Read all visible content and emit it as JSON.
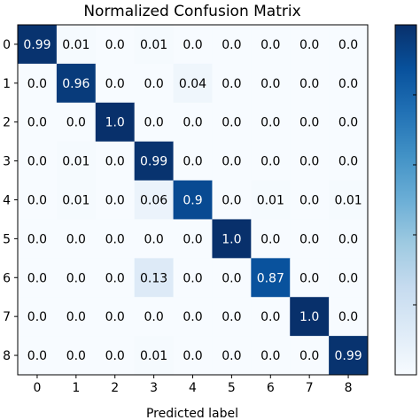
{
  "chart_data": {
    "type": "heatmap",
    "title": "Normalized Confusion Matrix",
    "xlabel": "Predicted label",
    "ylabel": "",
    "x_ticks": [
      "0",
      "1",
      "2",
      "3",
      "4",
      "5",
      "6",
      "7",
      "8"
    ],
    "y_ticks": [
      "0",
      "1",
      "2",
      "3",
      "4",
      "5",
      "6",
      "7",
      "8"
    ],
    "values": [
      [
        0.99,
        0.01,
        0.0,
        0.01,
        0.0,
        0.0,
        0.0,
        0.0,
        0.0
      ],
      [
        0.0,
        0.96,
        0.0,
        0.0,
        0.04,
        0.0,
        0.0,
        0.0,
        0.0
      ],
      [
        0.0,
        0.0,
        1.0,
        0.0,
        0.0,
        0.0,
        0.0,
        0.0,
        0.0
      ],
      [
        0.0,
        0.01,
        0.0,
        0.99,
        0.0,
        0.0,
        0.0,
        0.0,
        0.0
      ],
      [
        0.0,
        0.01,
        0.0,
        0.06,
        0.9,
        0.0,
        0.01,
        0.0,
        0.01
      ],
      [
        0.0,
        0.0,
        0.0,
        0.0,
        0.0,
        1.0,
        0.0,
        0.0,
        0.0
      ],
      [
        0.0,
        0.0,
        0.0,
        0.13,
        0.0,
        0.0,
        0.87,
        0.0,
        0.0
      ],
      [
        0.0,
        0.0,
        0.0,
        0.0,
        0.0,
        0.0,
        0.0,
        1.0,
        0.0
      ],
      [
        0.0,
        0.0,
        0.0,
        0.01,
        0.0,
        0.0,
        0.0,
        0.0,
        0.99
      ]
    ],
    "value_labels": [
      [
        "0.99",
        "0.01",
        "0.0",
        "0.01",
        "0.0",
        "0.0",
        "0.0",
        "0.0",
        "0.0"
      ],
      [
        "0.0",
        "0.96",
        "0.0",
        "0.0",
        "0.04",
        "0.0",
        "0.0",
        "0.0",
        "0.0"
      ],
      [
        "0.0",
        "0.0",
        "1.0",
        "0.0",
        "0.0",
        "0.0",
        "0.0",
        "0.0",
        "0.0"
      ],
      [
        "0.0",
        "0.01",
        "0.0",
        "0.99",
        "0.0",
        "0.0",
        "0.0",
        "0.0",
        "0.0"
      ],
      [
        "0.0",
        "0.01",
        "0.0",
        "0.06",
        "0.9",
        "0.0",
        "0.01",
        "0.0",
        "0.01"
      ],
      [
        "0.0",
        "0.0",
        "0.0",
        "0.0",
        "0.0",
        "1.0",
        "0.0",
        "0.0",
        "0.0"
      ],
      [
        "0.0",
        "0.0",
        "0.0",
        "0.13",
        "0.0",
        "0.0",
        "0.87",
        "0.0",
        "0.0"
      ],
      [
        "0.0",
        "0.0",
        "0.0",
        "0.0",
        "0.0",
        "0.0",
        "0.0",
        "1.0",
        "0.0"
      ],
      [
        "0.0",
        "0.0",
        "0.0",
        "0.01",
        "0.0",
        "0.0",
        "0.0",
        "0.0",
        "0.99"
      ]
    ],
    "colormap": "Blues",
    "colormap_low": "#f7fbff",
    "colormap_high": "#08306b",
    "text_color_dark": "#000000",
    "text_color_light": "#ffffff",
    "grid": false,
    "colorbar": true
  }
}
